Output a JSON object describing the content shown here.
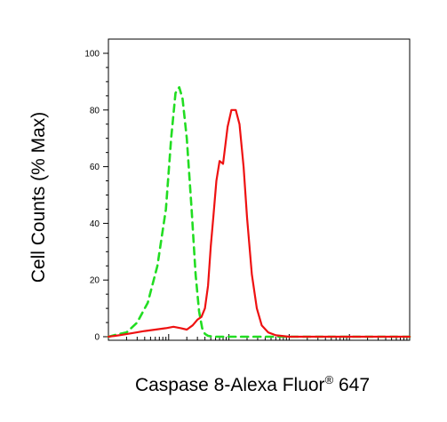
{
  "chart_data": {
    "type": "line",
    "title": "",
    "xlabel": "Caspase 8-Alexa Fluor",
    "xlabel_superscript": "®",
    "xlabel_suffix": " 647",
    "ylabel": "Cell Counts (% Max)",
    "x_scale": "log",
    "xlim": [
      1,
      100000
    ],
    "ylim": [
      0,
      100
    ],
    "yticks": [
      {
        "value": 0,
        "label": "0"
      },
      {
        "value": 20,
        "label": "20"
      },
      {
        "value": 40,
        "label": "40"
      },
      {
        "value": 60,
        "label": "60"
      },
      {
        "value": 80,
        "label": "80"
      },
      {
        "value": 100,
        "label": "100"
      }
    ],
    "grid": false,
    "legend": "none",
    "series": [
      {
        "color": "#22dd22",
        "style": "dashed",
        "x": [
          1,
          1.4,
          2,
          3,
          4.5,
          6.5,
          9,
          11,
          13,
          15,
          17,
          20,
          24,
          28,
          32,
          36,
          40,
          45,
          55,
          70,
          100000
        ],
        "y": [
          0,
          0.8,
          1.5,
          5,
          12,
          25,
          45,
          70,
          86,
          88,
          84,
          70,
          45,
          22,
          9,
          3,
          1,
          0.3,
          0,
          0,
          0
        ]
      },
      {
        "color": "#ee1111",
        "style": "solid",
        "x": [
          1,
          1.5,
          2.5,
          4,
          6,
          9,
          12,
          16,
          20,
          25,
          30,
          35,
          40,
          45,
          50,
          55,
          62,
          70,
          80,
          95,
          110,
          130,
          150,
          175,
          200,
          240,
          290,
          350,
          450,
          600,
          1000,
          100000
        ],
        "y": [
          0,
          0.5,
          1.3,
          2,
          2.5,
          3,
          3.5,
          3,
          2.5,
          4,
          6,
          7,
          10,
          18,
          32,
          42,
          55,
          62,
          61,
          74,
          80,
          80,
          75,
          60,
          42,
          22,
          10,
          4,
          1.5,
          0.5,
          0,
          0
        ]
      }
    ]
  }
}
